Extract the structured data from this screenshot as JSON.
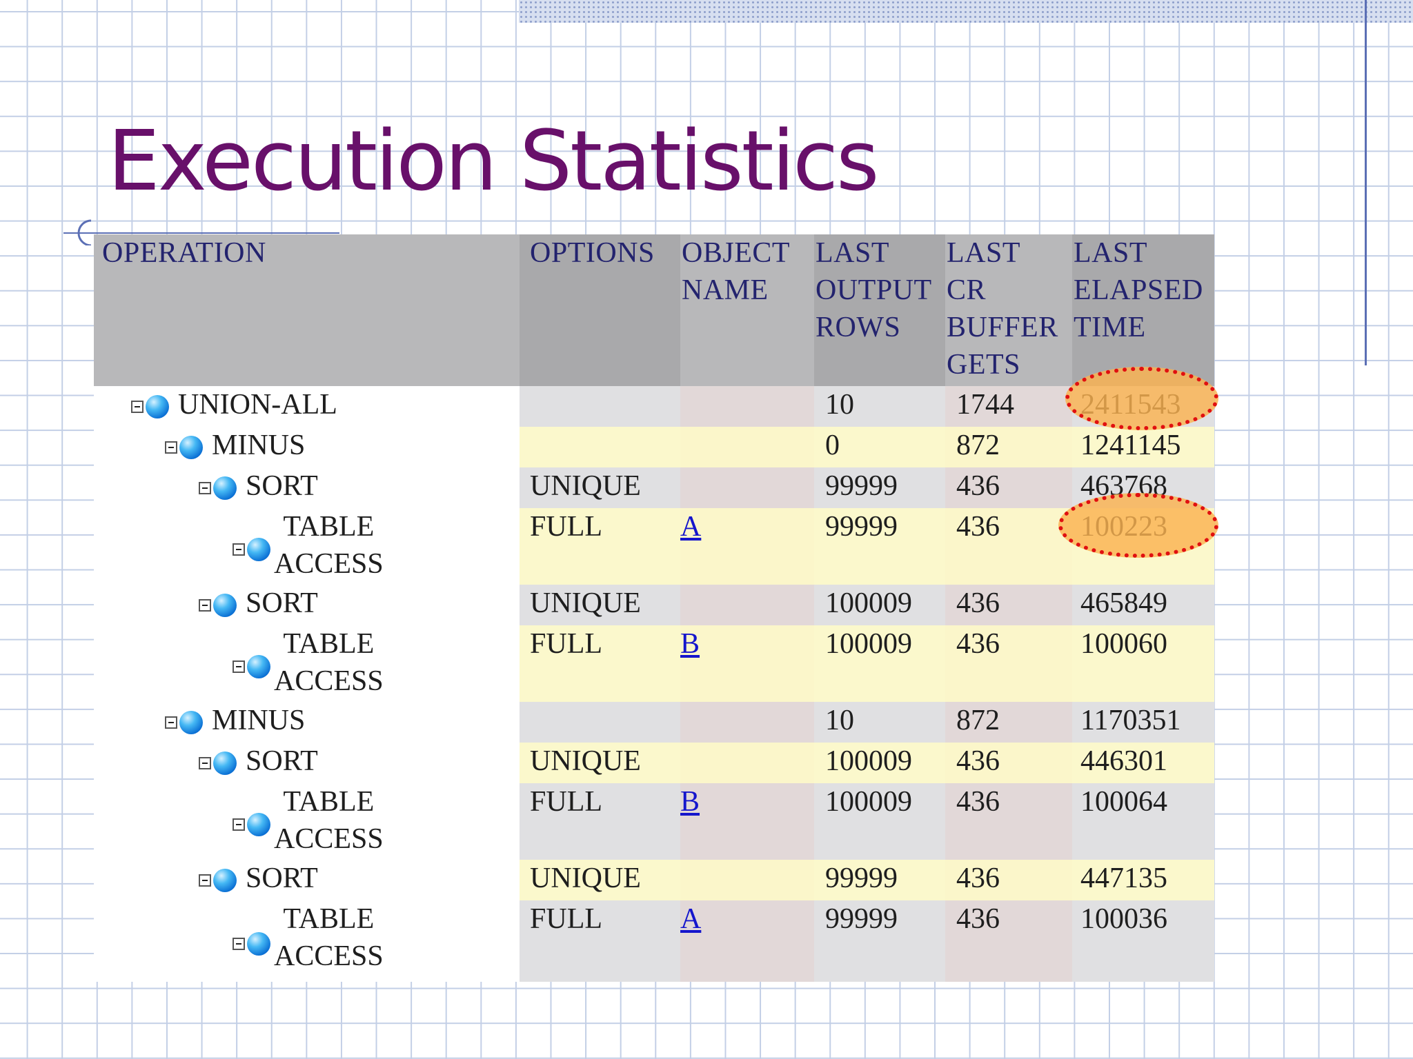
{
  "slide": {
    "title": "Execution Statistics"
  },
  "table": {
    "columns": [
      {
        "key": "operation",
        "label": "OPERATION"
      },
      {
        "key": "options",
        "label": "OPTIONS"
      },
      {
        "key": "object_name",
        "label": "OBJECT\nNAME"
      },
      {
        "key": "last_output_rows",
        "label": "LAST\nOUTPUT\nROWS"
      },
      {
        "key": "last_cr_buffer_gets",
        "label": "LAST\nCR\nBUFFER\nGETS"
      },
      {
        "key": "last_elapsed_time",
        "label": "LAST\nELAPSED\nTIME"
      }
    ],
    "rows": [
      {
        "operation": "UNION-ALL",
        "options": "",
        "object_name": "",
        "last_output_rows": "10",
        "last_cr_buffer_gets": "1744",
        "last_elapsed_time": "2411543"
      },
      {
        "operation": "MINUS",
        "options": "",
        "object_name": "",
        "last_output_rows": "0",
        "last_cr_buffer_gets": "872",
        "last_elapsed_time": "1241145"
      },
      {
        "operation": "SORT",
        "options": "UNIQUE",
        "object_name": "",
        "last_output_rows": "99999",
        "last_cr_buffer_gets": "436",
        "last_elapsed_time": "463768"
      },
      {
        "operation": "TABLE\nACCESS",
        "options": "FULL",
        "object_name": "A",
        "last_output_rows": "99999",
        "last_cr_buffer_gets": "436",
        "last_elapsed_time": "100223"
      },
      {
        "operation": "SORT",
        "options": "UNIQUE",
        "object_name": "",
        "last_output_rows": "100009",
        "last_cr_buffer_gets": "436",
        "last_elapsed_time": "465849"
      },
      {
        "operation": "TABLE\nACCESS",
        "options": "FULL",
        "object_name": "B",
        "last_output_rows": "100009",
        "last_cr_buffer_gets": "436",
        "last_elapsed_time": "100060"
      },
      {
        "operation": "MINUS",
        "options": "",
        "object_name": "",
        "last_output_rows": "10",
        "last_cr_buffer_gets": "872",
        "last_elapsed_time": "1170351"
      },
      {
        "operation": "SORT",
        "options": "UNIQUE",
        "object_name": "",
        "last_output_rows": "100009",
        "last_cr_buffer_gets": "436",
        "last_elapsed_time": "446301"
      },
      {
        "operation": "TABLE\nACCESS",
        "options": "FULL",
        "object_name": "B",
        "last_output_rows": "100009",
        "last_cr_buffer_gets": "436",
        "last_elapsed_time": "100064"
      },
      {
        "operation": "SORT",
        "options": "UNIQUE",
        "object_name": "",
        "last_output_rows": "99999",
        "last_cr_buffer_gets": "436",
        "last_elapsed_time": "447135"
      },
      {
        "operation": "TABLE\nACCESS",
        "options": "FULL",
        "object_name": "A",
        "last_output_rows": "99999",
        "last_cr_buffer_gets": "436",
        "last_elapsed_time": "100036"
      }
    ]
  },
  "colors": {
    "title": "#68106a",
    "header_text": "#23236e",
    "link": "#1515cc",
    "highlight_fill": "#faB250",
    "highlight_border": "#e01010"
  },
  "icons": {
    "tree_toggle": "collapse-box-icon",
    "tree_node": "blue-orb-icon"
  }
}
